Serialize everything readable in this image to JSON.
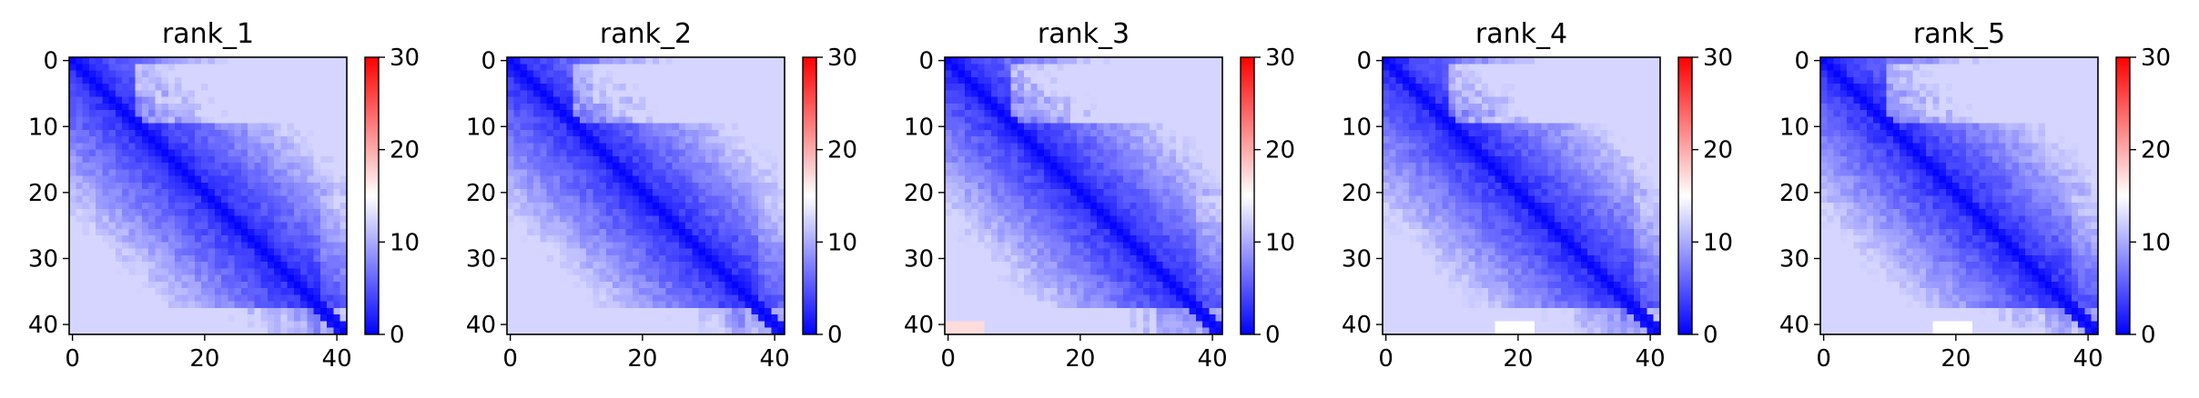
{
  "figure": {
    "background": "#ffffff"
  },
  "chart_data": [
    {
      "type": "heatmap",
      "title": "rank_1",
      "xlabel": "",
      "ylabel": "",
      "size": 42,
      "xlim": [
        0,
        41
      ],
      "ylim": [
        41,
        0
      ],
      "x_ticks": [
        0,
        20,
        40
      ],
      "y_ticks": [
        0,
        10,
        20,
        30,
        40
      ],
      "colorbar": {
        "range": [
          0,
          30
        ],
        "ticks": [
          0,
          10,
          20,
          30
        ],
        "colormap": "bwr",
        "colors": [
          "#0000ff",
          "#ffffff",
          "#ff0000"
        ]
      },
      "grid": false
    },
    {
      "type": "heatmap",
      "title": "rank_2",
      "xlabel": "",
      "ylabel": "",
      "size": 42,
      "xlim": [
        0,
        41
      ],
      "ylim": [
        41,
        0
      ],
      "x_ticks": [
        0,
        20,
        40
      ],
      "y_ticks": [
        0,
        10,
        20,
        30,
        40
      ],
      "colorbar": {
        "range": [
          0,
          30
        ],
        "ticks": [
          0,
          10,
          20,
          30
        ],
        "colormap": "bwr",
        "colors": [
          "#0000ff",
          "#ffffff",
          "#ff0000"
        ]
      },
      "grid": false
    },
    {
      "type": "heatmap",
      "title": "rank_3",
      "xlabel": "",
      "ylabel": "",
      "size": 42,
      "xlim": [
        0,
        41
      ],
      "ylim": [
        41,
        0
      ],
      "x_ticks": [
        0,
        20,
        40
      ],
      "y_ticks": [
        0,
        10,
        20,
        30,
        40
      ],
      "colorbar": {
        "range": [
          0,
          30
        ],
        "ticks": [
          0,
          10,
          20,
          30
        ],
        "colormap": "bwr",
        "colors": [
          "#0000ff",
          "#ffffff",
          "#ff0000"
        ]
      },
      "grid": false
    },
    {
      "type": "heatmap",
      "title": "rank_4",
      "xlabel": "",
      "ylabel": "",
      "size": 42,
      "xlim": [
        0,
        41
      ],
      "ylim": [
        41,
        0
      ],
      "x_ticks": [
        0,
        20,
        40
      ],
      "y_ticks": [
        0,
        10,
        20,
        30,
        40
      ],
      "colorbar": {
        "range": [
          0,
          30
        ],
        "ticks": [
          0,
          10,
          20,
          30
        ],
        "colormap": "bwr",
        "colors": [
          "#0000ff",
          "#ffffff",
          "#ff0000"
        ]
      },
      "grid": false
    },
    {
      "type": "heatmap",
      "title": "rank_5",
      "xlabel": "",
      "ylabel": "",
      "size": 42,
      "xlim": [
        0,
        41
      ],
      "ylim": [
        41,
        0
      ],
      "x_ticks": [
        0,
        20,
        40
      ],
      "y_ticks": [
        0,
        10,
        20,
        30,
        40
      ],
      "colorbar": {
        "range": [
          0,
          30
        ],
        "ticks": [
          0,
          10,
          20,
          30
        ],
        "colormap": "bwr",
        "colors": [
          "#0000ff",
          "#ffffff",
          "#ff0000"
        ]
      },
      "grid": false
    }
  ]
}
